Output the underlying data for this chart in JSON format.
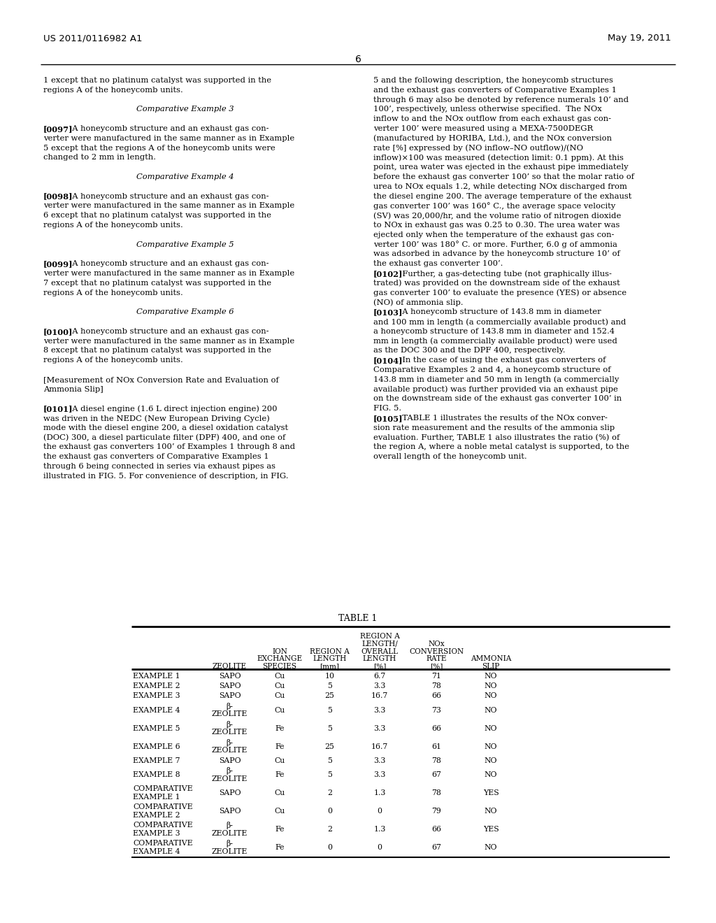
{
  "patent_number": "US 2011/0116982 A1",
  "date": "May 19, 2011",
  "page_number": "6",
  "background_color": "#ffffff",
  "text_color": "#000000",
  "left_column": [
    [
      "normal",
      "1 except that no platinum catalyst was supported in the"
    ],
    [
      "normal",
      "regions A of the honeycomb units."
    ],
    [
      "normal",
      ""
    ],
    [
      "center_italic",
      "Comparative Example 3"
    ],
    [
      "normal",
      ""
    ],
    [
      "bold_bracket",
      "[0097]",
      "  A honeycomb structure and an exhaust gas con-"
    ],
    [
      "normal",
      "verter were manufactured in the same manner as in Example"
    ],
    [
      "normal",
      "5 except that the regions A of the honeycomb units were"
    ],
    [
      "normal",
      "changed to 2 mm in length."
    ],
    [
      "normal",
      ""
    ],
    [
      "center_italic",
      "Comparative Example 4"
    ],
    [
      "normal",
      ""
    ],
    [
      "bold_bracket",
      "[0098]",
      "  A honeycomb structure and an exhaust gas con-"
    ],
    [
      "normal",
      "verter were manufactured in the same manner as in Example"
    ],
    [
      "normal",
      "6 except that no platinum catalyst was supported in the"
    ],
    [
      "normal",
      "regions A of the honeycomb units."
    ],
    [
      "normal",
      ""
    ],
    [
      "center_italic",
      "Comparative Example 5"
    ],
    [
      "normal",
      ""
    ],
    [
      "bold_bracket",
      "[0099]",
      "  A honeycomb structure and an exhaust gas con-"
    ],
    [
      "normal",
      "verter were manufactured in the same manner as in Example"
    ],
    [
      "normal",
      "7 except that no platinum catalyst was supported in the"
    ],
    [
      "normal",
      "regions A of the honeycomb units."
    ],
    [
      "normal",
      ""
    ],
    [
      "center_italic",
      "Comparative Example 6"
    ],
    [
      "normal",
      ""
    ],
    [
      "bold_bracket",
      "[0100]",
      "  A honeycomb structure and an exhaust gas con-"
    ],
    [
      "normal",
      "verter were manufactured in the same manner as in Example"
    ],
    [
      "normal",
      "8 except that no platinum catalyst was supported in the"
    ],
    [
      "normal",
      "regions A of the honeycomb units."
    ],
    [
      "normal",
      ""
    ],
    [
      "normal",
      "[Measurement of NOx Conversion Rate and Evaluation of"
    ],
    [
      "normal",
      "Ammonia Slip]"
    ],
    [
      "normal",
      ""
    ],
    [
      "bold_bracket",
      "[0101]",
      "  A diesel engine (1.6 L direct injection engine) ​200"
    ],
    [
      "normal",
      "was driven in the NEDC (New European Driving Cycle)"
    ],
    [
      "normal",
      "mode with the diesel engine ​200, a diesel oxidation catalyst"
    ],
    [
      "normal",
      "(DOC) ​300, a diesel particulate filter (DPF) ​400, and one of"
    ],
    [
      "normal",
      "the exhaust gas converters ​100’ of Examples 1 through 8 and"
    ],
    [
      "normal",
      "the exhaust gas converters of Comparative Examples 1"
    ],
    [
      "normal",
      "through 6 being connected in series via exhaust pipes as"
    ],
    [
      "normal",
      "illustrated in FIG. ​5. For convenience of description, in FIG."
    ]
  ],
  "right_column": [
    [
      "normal",
      "5 and the following description, the honeycomb structures"
    ],
    [
      "normal",
      "and the exhaust gas converters of Comparative Examples 1"
    ],
    [
      "normal",
      "through 6 may also be denoted by reference numerals 10’ and"
    ],
    [
      "normal",
      "100’, respectively, unless otherwise specified.  The NOx"
    ],
    [
      "normal",
      "inflow to and the NOx outflow from each exhaust gas con-"
    ],
    [
      "normal",
      "verter ​100’ were measured using a MEXA-7500DEGR"
    ],
    [
      "normal",
      "(manufactured by HORIBA, Ltd.), and the NOx conversion"
    ],
    [
      "normal",
      "rate [%] expressed by (NO inflow–NO outflow)/(NO"
    ],
    [
      "normal",
      "inflow)×100 was measured (detection limit: 0.1 ppm). At this"
    ],
    [
      "normal",
      "point, urea water was ejected in the exhaust pipe immediately"
    ],
    [
      "normal",
      "before the exhaust gas converter ​100’ so that the molar ratio of"
    ],
    [
      "normal",
      "urea to NOx equals 1.2, while detecting NOx discharged from"
    ],
    [
      "normal",
      "the diesel engine ​200. The average temperature of the exhaust"
    ],
    [
      "normal",
      "gas converter ​100’ was 160° C., the average space velocity"
    ],
    [
      "normal",
      "(SV) was 20,000/hr, and the volume ratio of nitrogen dioxide"
    ],
    [
      "normal",
      "to NOx in exhaust gas was 0.25 to 0.30. The urea water was"
    ],
    [
      "normal",
      "ejected only when the temperature of the exhaust gas con-"
    ],
    [
      "normal",
      "verter ​100’ was 180° C. or more. Further, 6.0 g of ammonia"
    ],
    [
      "normal",
      "was adsorbed in advance by the honeycomb structure ​10’ of"
    ],
    [
      "normal",
      "the exhaust gas converter ​100’."
    ],
    [
      "bold_bracket",
      "[0102]",
      "  Further, a gas-detecting tube (not graphically illus-"
    ],
    [
      "normal",
      "trated) was provided on the downstream side of the exhaust"
    ],
    [
      "normal",
      "gas converter ​100’ to evaluate the presence (YES) or absence"
    ],
    [
      "normal",
      "(NO) of ammonia slip."
    ],
    [
      "bold_bracket",
      "[0103]",
      "  A honeycomb structure of 143.8 mm in diameter"
    ],
    [
      "normal",
      "and 100 mm in length (a commercially available product) and"
    ],
    [
      "normal",
      "a honeycomb structure of 143.8 mm in diameter and 152.4"
    ],
    [
      "normal",
      "mm in length (a commercially available product) were used"
    ],
    [
      "normal",
      "as the DOC ​300 and the DPF ​400, respectively."
    ],
    [
      "bold_bracket",
      "[0104]",
      "  In the case of using the exhaust gas converters of"
    ],
    [
      "normal",
      "Comparative Examples 2 and 4, a honeycomb structure of"
    ],
    [
      "normal",
      "143.8 mm in diameter and 50 mm in length (a commercially"
    ],
    [
      "normal",
      "available product) was further provided via an exhaust pipe"
    ],
    [
      "normal",
      "on the downstream side of the exhaust gas converter ​100’ in"
    ],
    [
      "normal",
      "FIG. ​5."
    ],
    [
      "bold_bracket",
      "[0105]",
      "  TABLE 1 illustrates the results of the NOx conver-"
    ],
    [
      "normal",
      "sion rate measurement and the results of the ammonia slip"
    ],
    [
      "normal",
      "evaluation. Further, TABLE 1 also illustrates the ratio (%) of"
    ],
    [
      "normal",
      "the region A, where a noble metal catalyst is supported, to the"
    ],
    [
      "normal",
      "overall length of the honeycomb unit."
    ]
  ],
  "table_title": "TABLE 1",
  "table_rows": [
    [
      "EXAMPLE 1",
      "SAPO",
      "Cu",
      "10",
      "6.7",
      "71",
      "NO"
    ],
    [
      "EXAMPLE 2",
      "SAPO",
      "Cu",
      "5",
      "3.3",
      "78",
      "NO"
    ],
    [
      "EXAMPLE 3",
      "SAPO",
      "Cu",
      "25",
      "16.7",
      "66",
      "NO"
    ],
    [
      "EXAMPLE 4",
      "β-\nZEOLITE",
      "Cu",
      "5",
      "3.3",
      "73",
      "NO"
    ],
    [
      "EXAMPLE 5",
      "β-\nZEOLITE",
      "Fe",
      "5",
      "3.3",
      "66",
      "NO"
    ],
    [
      "EXAMPLE 6",
      "β-\nZEOLITE",
      "Fe",
      "25",
      "16.7",
      "61",
      "NO"
    ],
    [
      "EXAMPLE 7",
      "SAPO",
      "Cu",
      "5",
      "3.3",
      "78",
      "NO"
    ],
    [
      "EXAMPLE 8",
      "β-\nZEOLITE",
      "Fe",
      "5",
      "3.3",
      "67",
      "NO"
    ],
    [
      "COMPARATIVE\nEXAMPLE 1",
      "SAPO",
      "Cu",
      "2",
      "1.3",
      "78",
      "YES"
    ],
    [
      "COMPARATIVE\nEXAMPLE 2",
      "SAPO",
      "Cu",
      "0",
      "0",
      "79",
      "NO"
    ],
    [
      "COMPARATIVE\nEXAMPLE 3",
      "β-\nZEOLITE",
      "Fe",
      "2",
      "1.3",
      "66",
      "YES"
    ],
    [
      "COMPARATIVE\nEXAMPLE 4",
      "β-\nZEOLITE",
      "Fe",
      "0",
      "0",
      "67",
      "NO"
    ]
  ]
}
